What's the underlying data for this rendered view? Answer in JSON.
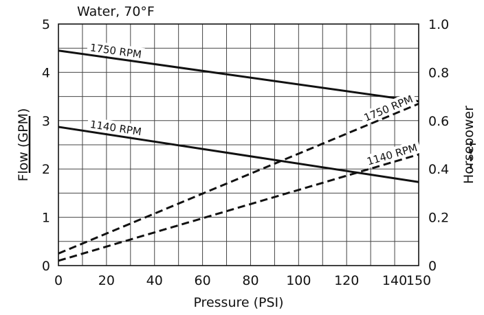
{
  "chart_data": {
    "type": "line",
    "title": "Water, 70°F",
    "xlabel": "Pressure (PSI)",
    "ylabel": "Flow (GPM)",
    "y2label": "Horsepower",
    "xlim": [
      0,
      150
    ],
    "ylim": [
      0,
      5
    ],
    "y2lim": [
      0,
      1.0
    ],
    "x_ticks": [
      0,
      20,
      40,
      60,
      80,
      100,
      120,
      140,
      150
    ],
    "x_tick_labels": [
      "0",
      "20",
      "40",
      "60",
      "80",
      "100",
      "120",
      "140",
      "150"
    ],
    "y_ticks": [
      0,
      1,
      2,
      3,
      4,
      5
    ],
    "y_tick_labels": [
      "0",
      "1",
      "2",
      "3",
      "4",
      "5"
    ],
    "y2_ticks": [
      0,
      0.2,
      0.4,
      0.6,
      0.8,
      1.0
    ],
    "y2_tick_labels": [
      "0",
      "0.2",
      "0.4",
      "0.6",
      "0.8",
      "1.0"
    ],
    "grid": true,
    "series": [
      {
        "name": "1750 RPM",
        "axis": "left",
        "style": "solid",
        "x": [
          0,
          150
        ],
        "y": [
          4.45,
          3.4
        ]
      },
      {
        "name": "1140 RPM",
        "axis": "left",
        "style": "solid",
        "x": [
          0,
          150
        ],
        "y": [
          2.87,
          1.73
        ]
      },
      {
        "name": "1750 RPM",
        "axis": "right",
        "style": "dashed",
        "x": [
          0,
          150
        ],
        "y": [
          0.05,
          0.67
        ]
      },
      {
        "name": "1140 RPM",
        "axis": "right",
        "style": "dashed",
        "x": [
          0,
          150
        ],
        "y": [
          0.02,
          0.46
        ]
      }
    ]
  }
}
